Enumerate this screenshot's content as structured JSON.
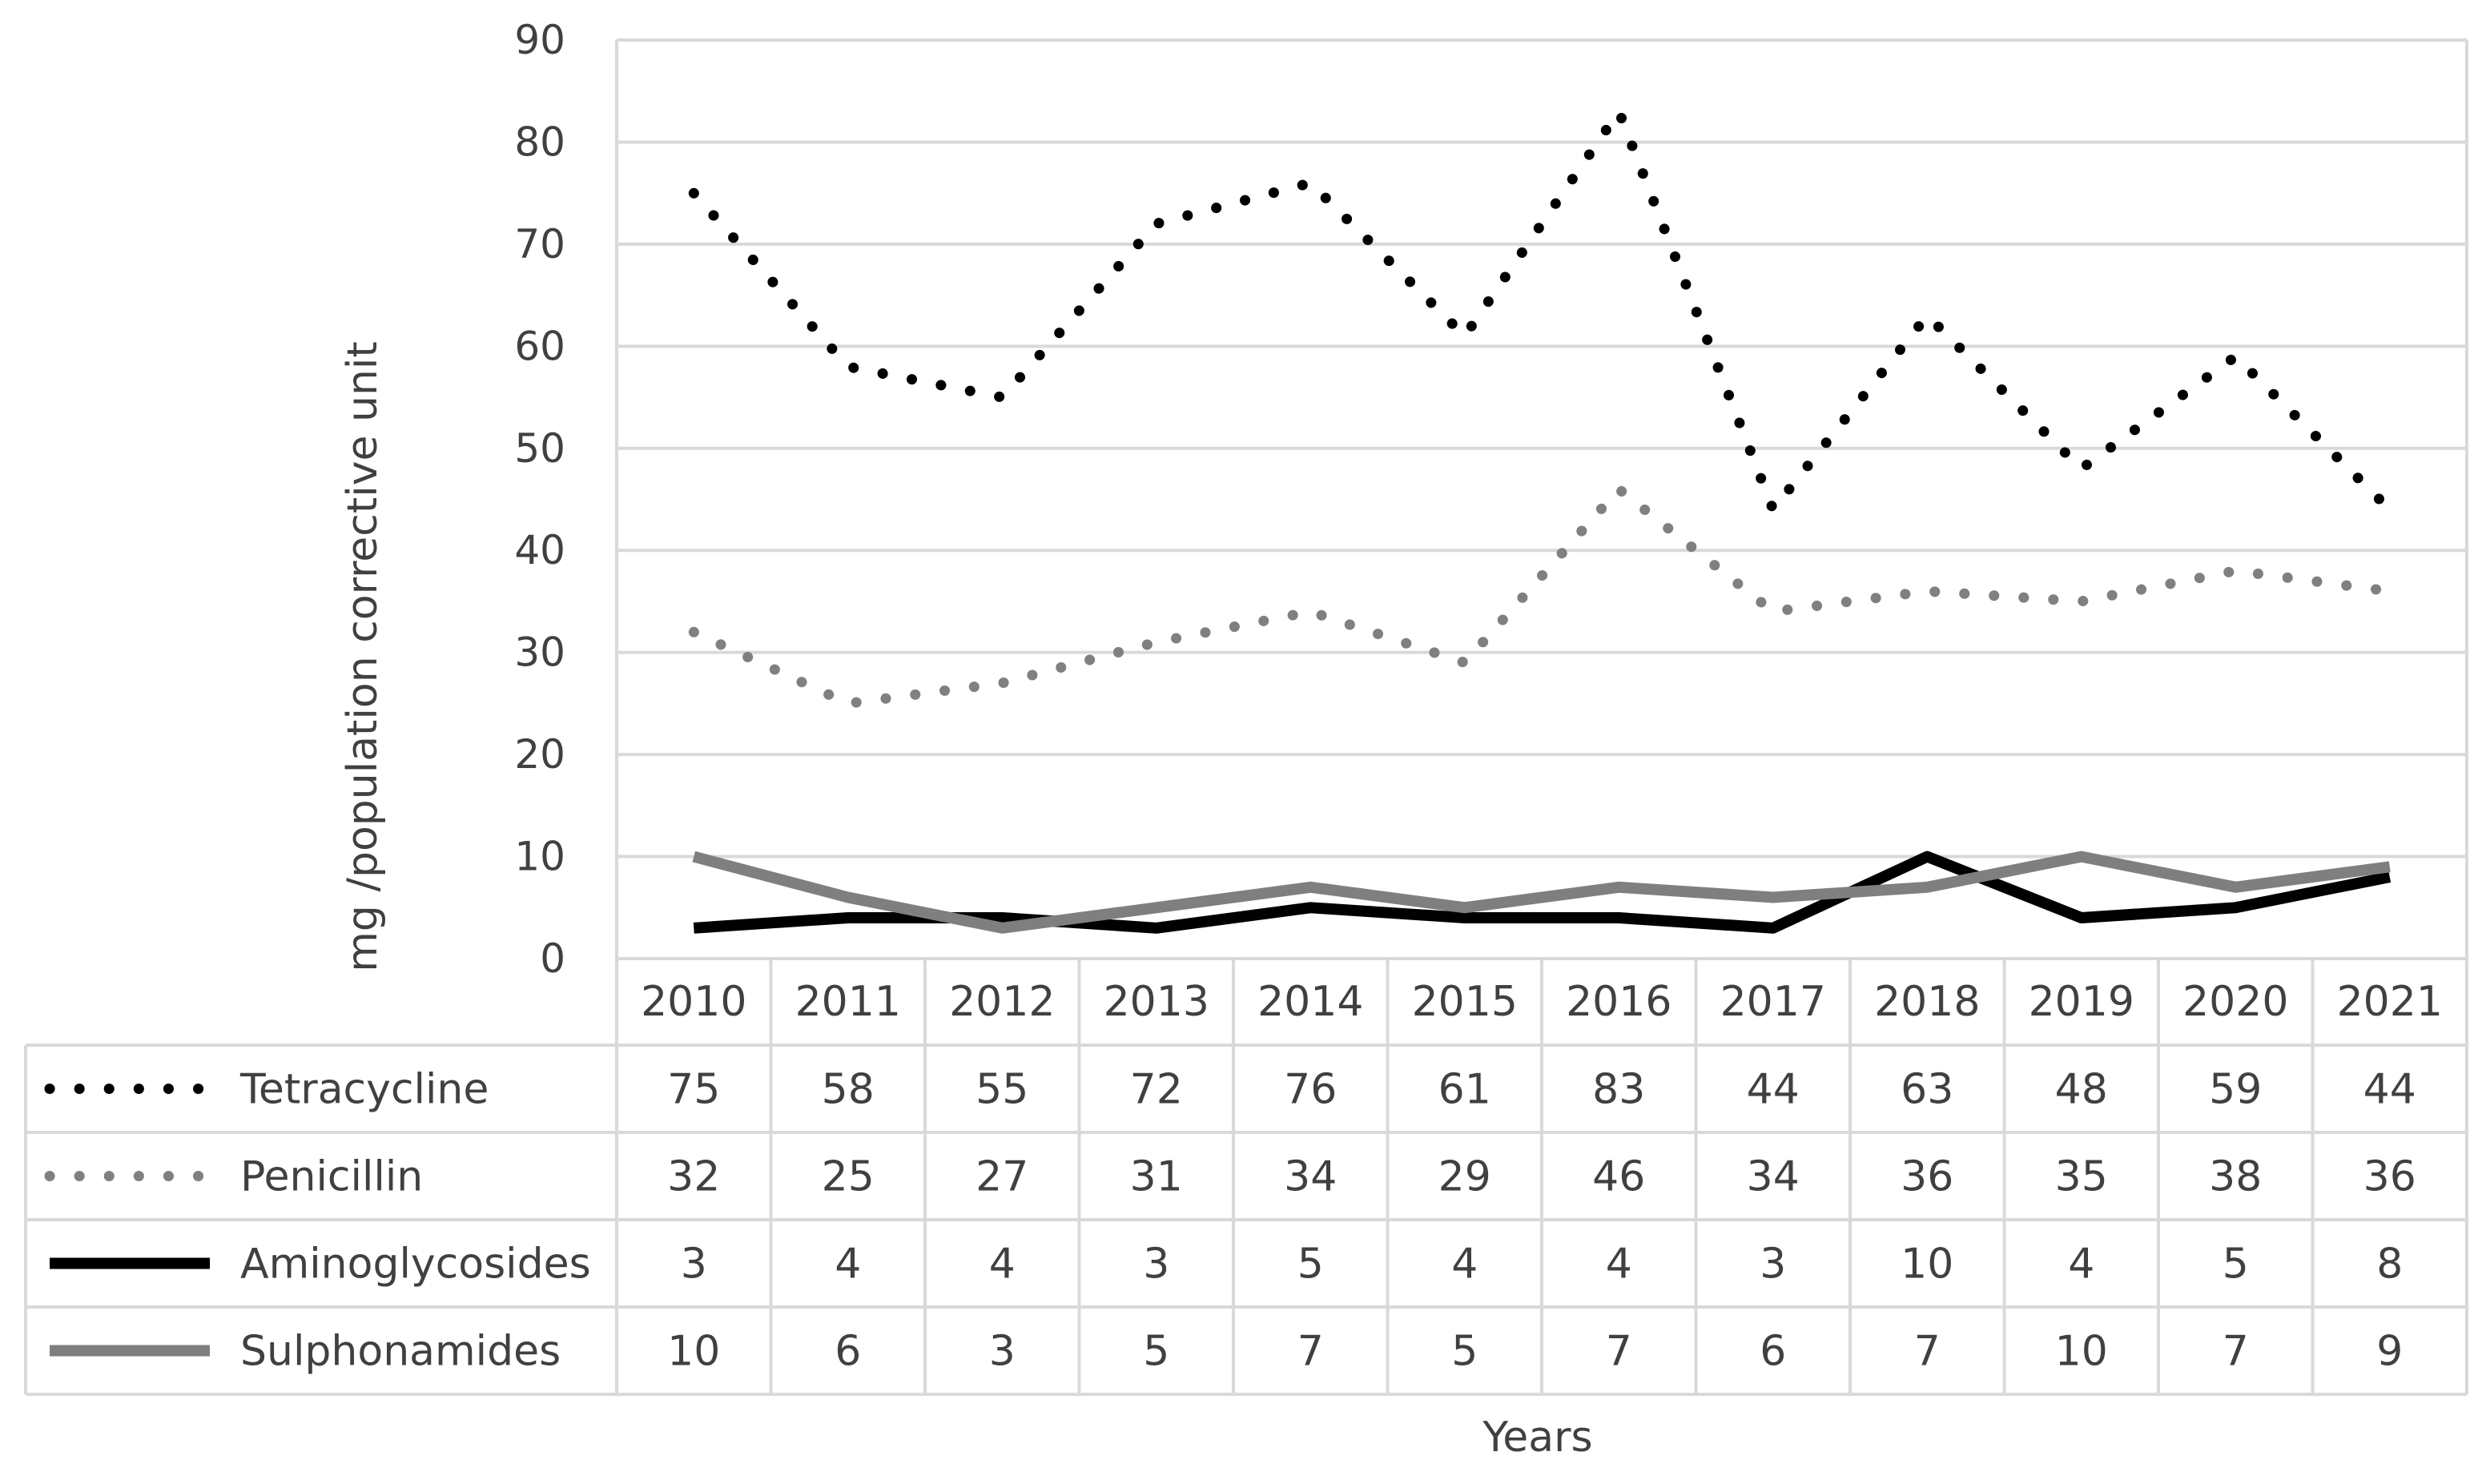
{
  "chart_data": {
    "type": "line",
    "title": "",
    "xlabel": "Years",
    "ylabel": "mg /population corrective unit",
    "ylim": [
      0,
      90
    ],
    "ytick_step": 10,
    "yticks": [
      "0",
      "10",
      "20",
      "30",
      "40",
      "50",
      "60",
      "70",
      "80",
      "90"
    ],
    "grid": "horizontal",
    "legend": "data-table",
    "categories": [
      "2010",
      "2011",
      "2012",
      "2013",
      "2014",
      "2015",
      "2016",
      "2017",
      "2018",
      "2019",
      "2020",
      "2021"
    ],
    "series": [
      {
        "name": "Tetracycline",
        "values": [
          75,
          58,
          55,
          72,
          76,
          61,
          83,
          44,
          63,
          48,
          59,
          44
        ],
        "color": "#000000",
        "style": "dotted"
      },
      {
        "name": "Penicillin",
        "values": [
          32,
          25,
          27,
          31,
          34,
          29,
          46,
          34,
          36,
          35,
          38,
          36
        ],
        "color": "#808080",
        "style": "dotted"
      },
      {
        "name": "Aminoglycosides",
        "values": [
          3,
          4,
          4,
          3,
          5,
          4,
          4,
          3,
          10,
          4,
          5,
          8
        ],
        "color": "#000000",
        "style": "solid"
      },
      {
        "name": "Sulphonamides",
        "values": [
          10,
          6,
          3,
          5,
          7,
          5,
          7,
          6,
          7,
          10,
          7,
          9
        ],
        "color": "#7f7f7f",
        "style": "solid"
      }
    ]
  }
}
